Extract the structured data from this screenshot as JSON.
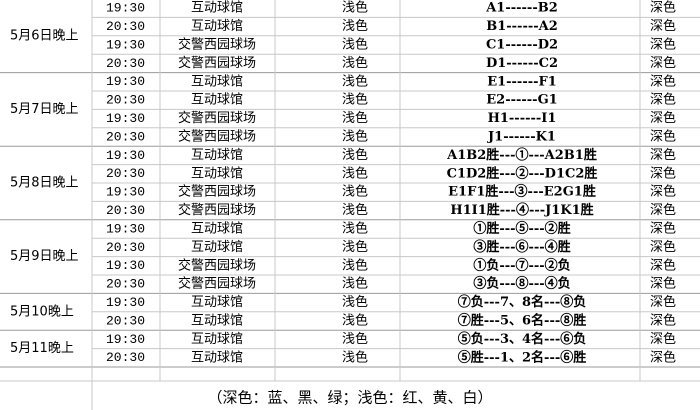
{
  "groups": [
    {
      "date": "5月6日晚上",
      "rows": [
        {
          "time": "19:30",
          "venue": "互动球馆",
          "light": "浅色",
          "match": "A1------B2",
          "dark": "深色"
        },
        {
          "time": "20:30",
          "venue": "互动球馆",
          "light": "浅色",
          "match": "B1------A2",
          "dark": "深色"
        },
        {
          "time": "19:30",
          "venue": "交警西园球场",
          "light": "浅色",
          "match": "C1------D2",
          "dark": "深色"
        },
        {
          "time": "20:30",
          "venue": "交警西园球场",
          "light": "浅色",
          "match": "D1------C2",
          "dark": "深色"
        }
      ]
    },
    {
      "date": "5月7日晚上",
      "rows": [
        {
          "time": "19:30",
          "venue": "互动球馆",
          "light": "浅色",
          "match": "E1------F1",
          "dark": "深色"
        },
        {
          "time": "20:30",
          "venue": "互动球馆",
          "light": "浅色",
          "match": "E2------G1",
          "dark": "深色"
        },
        {
          "time": "19:30",
          "venue": "交警西园球场",
          "light": "浅色",
          "match": "H1------I1",
          "dark": "深色"
        },
        {
          "time": "20:30",
          "venue": "交警西园球场",
          "light": "浅色",
          "match": "J1------K1",
          "dark": "深色"
        }
      ]
    },
    {
      "date": "5月8日晚上",
      "rows": [
        {
          "time": "19:30",
          "venue": "互动球馆",
          "light": "浅色",
          "match": "A1B2胜---①---A2B1胜",
          "dark": "深色"
        },
        {
          "time": "20:30",
          "venue": "互动球馆",
          "light": "浅色",
          "match": "C1D2胜---②---D1C2胜",
          "dark": "深色"
        },
        {
          "time": "19:30",
          "venue": "交警西园球场",
          "light": "浅色",
          "match": "E1F1胜---③---E2G1胜",
          "dark": "深色"
        },
        {
          "time": "20:30",
          "venue": "交警西园球场",
          "light": "浅色",
          "match": "H1I1胜---④---J1K1胜",
          "dark": "深色"
        }
      ]
    },
    {
      "date": "5月9日晚上",
      "rows": [
        {
          "time": "19:30",
          "venue": "互动球馆",
          "light": "浅色",
          "match": "①胜---⑤---②胜",
          "dark": "深色"
        },
        {
          "time": "20:30",
          "venue": "互动球馆",
          "light": "浅色",
          "match": "③胜---⑥---④胜",
          "dark": "深色"
        },
        {
          "time": "19:30",
          "venue": "交警西园球场",
          "light": "浅色",
          "match": "①负---⑦---②负",
          "dark": "深色"
        },
        {
          "time": "20:30",
          "venue": "交警西园球场",
          "light": "浅色",
          "match": "③负---⑧---④负",
          "dark": "深色"
        }
      ]
    },
    {
      "date": "5月10晚上",
      "rows": [
        {
          "time": "19:30",
          "venue": "互动球馆",
          "light": "浅色",
          "match": "⑦负---7、8名---⑧负",
          "dark": "深色"
        },
        {
          "time": "20:30",
          "venue": "互动球馆",
          "light": "浅色",
          "match": "⑦胜---5、6名---⑧胜",
          "dark": "深色"
        }
      ]
    },
    {
      "date": "5月11晚上",
      "rows": [
        {
          "time": "19:30",
          "venue": "互动球馆",
          "light": "浅色",
          "match": "⑤负---3、4名---⑥负",
          "dark": "深色"
        },
        {
          "time": "20:30",
          "venue": "互动球馆",
          "light": "浅色",
          "match": "⑤胜---1、2名---⑥胜",
          "dark": "深色"
        }
      ]
    }
  ],
  "footer": "（深色：蓝、黑、绿；浅色：红、黄、白）"
}
